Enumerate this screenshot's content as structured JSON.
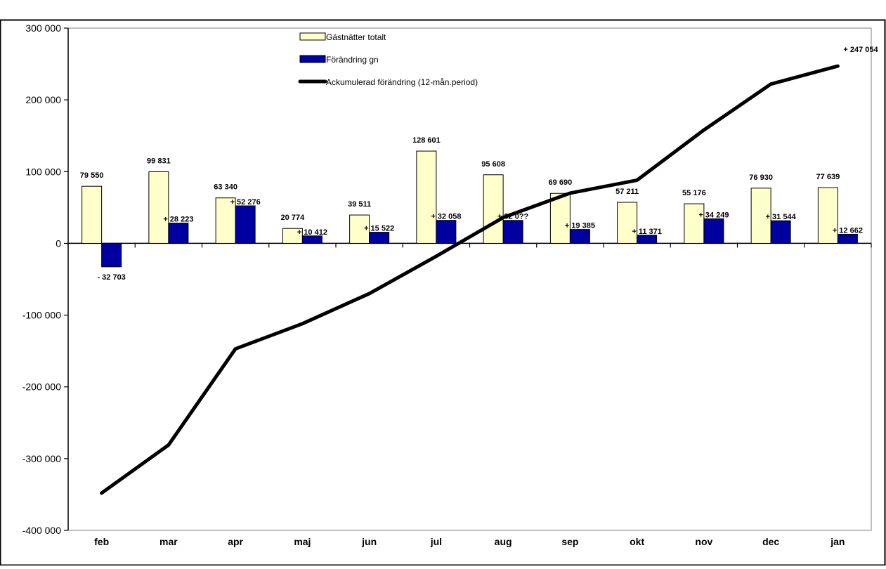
{
  "chart_data": {
    "type": "bar",
    "title": "",
    "xlabel": "",
    "ylabel": "",
    "categories": [
      "feb",
      "mar",
      "apr",
      "maj",
      "jun",
      "jul",
      "aug",
      "sep",
      "okt",
      "nov",
      "dec",
      "jan"
    ],
    "ylim": [
      -400000,
      300000
    ],
    "yticks": [
      300000,
      200000,
      100000,
      0,
      -100000,
      -200000,
      -300000,
      -400000
    ],
    "ytick_labels": [
      "300 000",
      "200 000",
      "100 000",
      "0",
      "-100 000",
      "-200 000",
      "-300 000",
      "-400 000"
    ],
    "grid": false,
    "legend_position": "top-center",
    "series": [
      {
        "name": "Gästnätter totalt",
        "kind": "bar",
        "color": "#ffffcc",
        "values": [
          79550,
          99831,
          63340,
          20774,
          39511,
          128601,
          95608,
          69690,
          57211,
          55176,
          76930,
          77639
        ],
        "labels": [
          "79 550",
          "99 831",
          "63 340",
          "20 774",
          "39 511",
          "128 601",
          "95 608",
          "69 690",
          "57 211",
          "55 176",
          "76 930",
          "77 639"
        ]
      },
      {
        "name": "Förändring gn",
        "kind": "bar",
        "color": "#0000a0",
        "values": [
          -32703,
          28223,
          52276,
          10412,
          15522,
          32058,
          32000,
          19385,
          11371,
          34249,
          31544,
          12662
        ],
        "labels": [
          "- 32 703",
          "+ 28 223",
          "+ 52 276",
          "+ 10 412",
          "+ 15 522",
          "+ 32 058",
          "+ 32 0??",
          "+ 19 385",
          "+ 11 371",
          "+ 34 249",
          "+ 31 544",
          "+ 12 662"
        ]
      },
      {
        "name": "Ackumulerad förändring (12-mån.period)",
        "kind": "line",
        "color": "#000000",
        "values": [
          -348000,
          -281000,
          -147000,
          -112000,
          -70000,
          -18000,
          36000,
          70000,
          88000,
          158000,
          222000,
          247054
        ],
        "end_label": "+ 247 054"
      }
    ]
  }
}
